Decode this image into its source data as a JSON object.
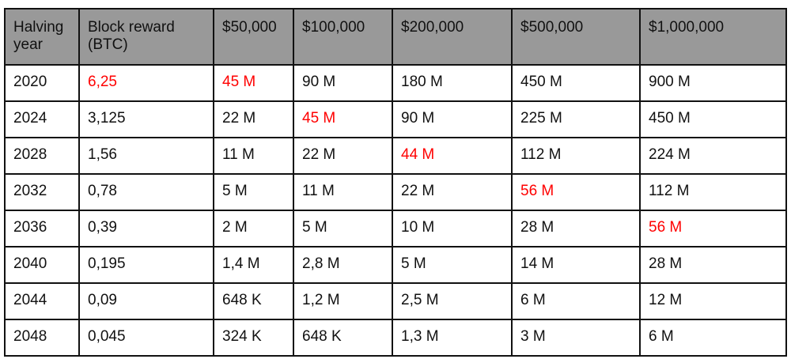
{
  "highlight_color": "#ff0000",
  "header_bg": "#999999",
  "headers": [
    "Halving year",
    "Block reward (BTC)",
    "$50,000",
    "$100,000",
    "$200,000",
    "$500,000",
    "$1,000,000"
  ],
  "rows": [
    {
      "cells": [
        "2020",
        "6,25",
        "45 M",
        "90 M",
        "180 M",
        "450 M",
        "900 M"
      ],
      "highlighted_columns": [
        1,
        2
      ]
    },
    {
      "cells": [
        "2024",
        "3,125",
        "22 M",
        "45 M",
        "90 M",
        "225 M",
        "450 M"
      ],
      "highlighted_columns": [
        3
      ]
    },
    {
      "cells": [
        "2028",
        "1,56",
        "11 M",
        "22 M",
        "44 M",
        "112 M",
        "224 M"
      ],
      "highlighted_columns": [
        4
      ]
    },
    {
      "cells": [
        "2032",
        "0,78",
        "5 M",
        "11 M",
        "22 M",
        "56 M",
        "112 M"
      ],
      "highlighted_columns": [
        5
      ]
    },
    {
      "cells": [
        "2036",
        "0,39",
        "2 M",
        "5 M",
        "10 M",
        "28 M",
        "56 M"
      ],
      "highlighted_columns": [
        6
      ]
    },
    {
      "cells": [
        "2040",
        "0,195",
        "1,4 M",
        "2,8 M",
        "5 M",
        "14 M",
        "28 M"
      ],
      "highlighted_columns": []
    },
    {
      "cells": [
        "2044",
        "0,09",
        "648 K",
        "1,2 M",
        "2,5 M",
        "6 M",
        "12 M"
      ],
      "highlighted_columns": []
    },
    {
      "cells": [
        "2048",
        "0,045",
        "324 K",
        "648 K",
        "1,3 M",
        "3 M",
        "6 M"
      ],
      "highlighted_columns": []
    }
  ]
}
